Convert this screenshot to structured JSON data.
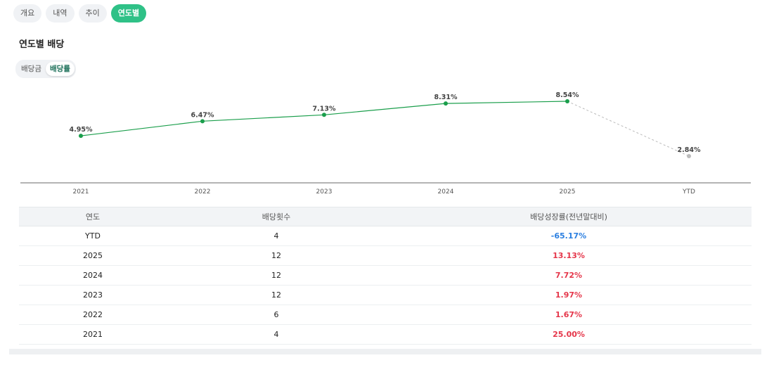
{
  "tabs": [
    {
      "label": "개요",
      "active": false
    },
    {
      "label": "내역",
      "active": false
    },
    {
      "label": "추이",
      "active": false
    },
    {
      "label": "연도별",
      "active": true
    }
  ],
  "section_title": "연도별 배당",
  "toggle": [
    {
      "label": "배당금",
      "active": false
    },
    {
      "label": "배당률",
      "active": true
    }
  ],
  "chart_data": {
    "type": "line",
    "categories": [
      "2021",
      "2022",
      "2023",
      "2024",
      "2025",
      "YTD"
    ],
    "values": [
      4.95,
      6.47,
      7.13,
      8.31,
      8.54,
      2.84
    ],
    "labels": [
      "4.95%",
      "6.47%",
      "7.13%",
      "8.31%",
      "8.54%",
      "2.84%"
    ],
    "unit": "%",
    "ylim": [
      0,
      10
    ],
    "line_color": "#1a9e4b",
    "ytd_color": "#bbbbbb",
    "ytd_style": "dashed"
  },
  "table": {
    "headers": [
      "연도",
      "배당횟수",
      "배당성장률(전년말대비)"
    ],
    "rows": [
      {
        "year": "YTD",
        "count": "4",
        "growth": "-65.17%",
        "sign": "neg"
      },
      {
        "year": "2025",
        "count": "12",
        "growth": "13.13%",
        "sign": "pos"
      },
      {
        "year": "2024",
        "count": "12",
        "growth": "7.72%",
        "sign": "pos"
      },
      {
        "year": "2023",
        "count": "12",
        "growth": "1.97%",
        "sign": "pos"
      },
      {
        "year": "2022",
        "count": "6",
        "growth": "1.67%",
        "sign": "pos"
      },
      {
        "year": "2021",
        "count": "4",
        "growth": "25.00%",
        "sign": "pos"
      }
    ]
  }
}
